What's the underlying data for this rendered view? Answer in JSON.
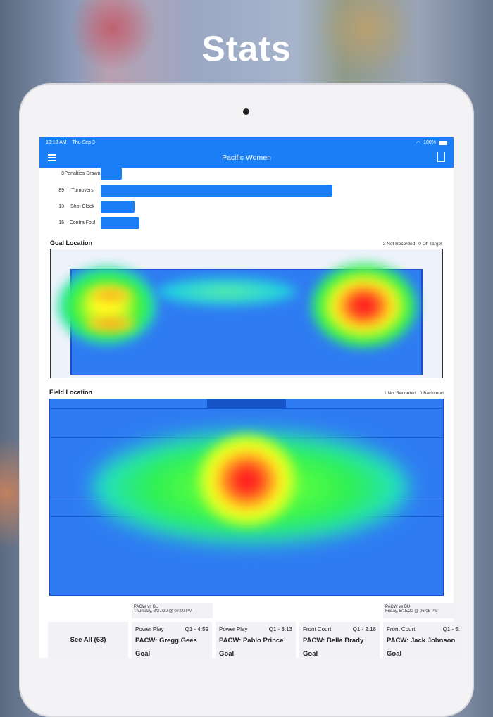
{
  "headline": "Stats",
  "status": {
    "time": "10:18 AM",
    "date": "Thu Sep 3",
    "battery": "100%"
  },
  "nav": {
    "title": "Pacific Women"
  },
  "bars": [
    {
      "value": 8,
      "label": "Penalties Drawn"
    },
    {
      "value": 89,
      "label": "Turnovers"
    },
    {
      "value": 13,
      "label": "Shot Clock"
    },
    {
      "value": 15,
      "label": "Contra Foul"
    }
  ],
  "goal_location": {
    "title": "Goal Location",
    "not_recorded": "3 Not Recorded",
    "off_target": "0 Off Target"
  },
  "field_location": {
    "title": "Field Location",
    "not_recorded": "1 Not Recorded",
    "backcourt": "0 Backcourt"
  },
  "see_all": "See All (63)",
  "games": [
    {
      "match": "PACW vs BU",
      "date": "Thursday, 8/27/20 @ 07:00 PM"
    },
    {
      "match": "PACW vs BU",
      "date": "Friday, 5/15/20 @ 06:05 PM"
    }
  ],
  "events": [
    {
      "type": "Power Play",
      "time": "Q1 - 4:59",
      "player": "PACW: Gregg Gees",
      "result": "Goal"
    },
    {
      "type": "Power Play",
      "time": "Q1 - 3:13",
      "player": "PACW: Pablo Prince",
      "result": "Goal"
    },
    {
      "type": "Front Court",
      "time": "Q1 - 2:18",
      "player": "PACW: Bella Brady",
      "result": "Goal"
    },
    {
      "type": "Front Court",
      "time": "Q1 - 5:",
      "player": "PACW: Jack Johnson",
      "result": "Goal"
    }
  ]
}
